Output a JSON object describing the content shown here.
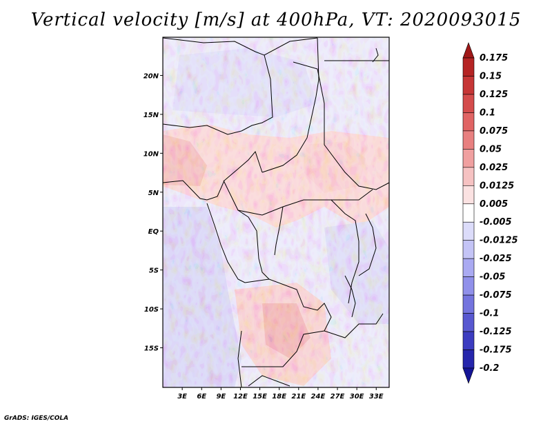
{
  "title": "Vertical velocity [m/s] at 400hPa, VT: 2020093015",
  "credit": "GrADS: IGES/COLA",
  "map": {
    "lat_labels": [
      "20N",
      "15N",
      "10N",
      "5N",
      "EQ",
      "5S",
      "10S",
      "15S"
    ],
    "lat_values": [
      20,
      15,
      10,
      5,
      0,
      -5,
      -10,
      -15
    ],
    "lon_labels": [
      "3E",
      "6E",
      "9E",
      "12E",
      "15E",
      "18E",
      "21E",
      "24E",
      "27E",
      "30E",
      "33E"
    ],
    "lon_values": [
      3,
      6,
      9,
      12,
      15,
      18,
      21,
      24,
      27,
      30,
      33
    ],
    "lon_range": [
      0,
      35
    ],
    "lat_range": [
      -20,
      25
    ],
    "field": "vertical velocity",
    "units": "m/s",
    "level": "400hPa",
    "valid_time": "2020093015"
  },
  "colorbar": {
    "labels": [
      "0.175",
      "0.15",
      "0.125",
      "0.1",
      "0.075",
      "0.05",
      "0.025",
      "0.0125",
      "0.005",
      "-0.005",
      "-0.0125",
      "-0.025",
      "-0.05",
      "-0.075",
      "-0.1",
      "-0.125",
      "-0.175",
      "-0.2"
    ],
    "colors": [
      "#a01818",
      "#b52424",
      "#c63636",
      "#d44c4c",
      "#e06464",
      "#e88080",
      "#f0a0a0",
      "#f6c2c2",
      "#fbe2e2",
      "#ffffff",
      "#dcdcfa",
      "#c4c4f6",
      "#aaaaf2",
      "#9090ea",
      "#7474de",
      "#5858d0",
      "#3c3cc0",
      "#2626ac",
      "#141496"
    ]
  }
}
